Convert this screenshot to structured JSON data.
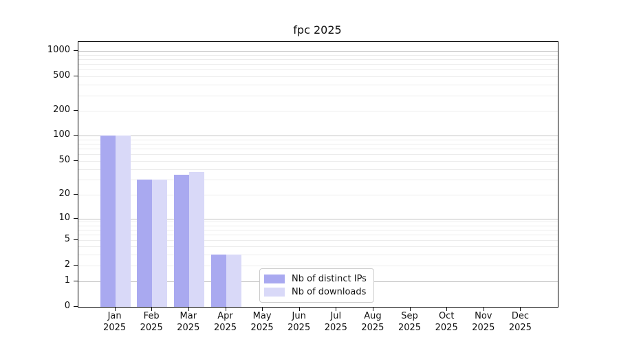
{
  "title": "fpc 2025",
  "chart_data": {
    "type": "bar",
    "title": "fpc 2025",
    "year_label": "2025",
    "categories": [
      "Jan",
      "Feb",
      "Mar",
      "Apr",
      "May",
      "Jun",
      "Jul",
      "Aug",
      "Sep",
      "Oct",
      "Nov",
      "Dec"
    ],
    "series": [
      {
        "name": "Nb of distinct IPs",
        "color": "#a9a9f0",
        "values": [
          100,
          30,
          34,
          3,
          0,
          0,
          0,
          0,
          0,
          0,
          0,
          0
        ]
      },
      {
        "name": "Nb of downloads",
        "color": "#d9d9f8",
        "values": [
          100,
          30,
          37,
          3,
          0,
          0,
          0,
          0,
          0,
          0,
          0,
          0
        ]
      }
    ],
    "y_axis": {
      "scale": "symlog",
      "tick_values": [
        0,
        1,
        2,
        5,
        10,
        20,
        50,
        100,
        200,
        500,
        1000
      ],
      "tick_labels": [
        "0",
        "1",
        "2",
        "5",
        "10",
        "20",
        "50",
        "100",
        "200",
        "500",
        "1000"
      ],
      "range_top_approx": 1300
    },
    "grid": {
      "horizontal": true,
      "vertical": false,
      "minor_gridlines": true
    },
    "legend_position": "lower-center",
    "xlabel": "",
    "ylabel": ""
  }
}
